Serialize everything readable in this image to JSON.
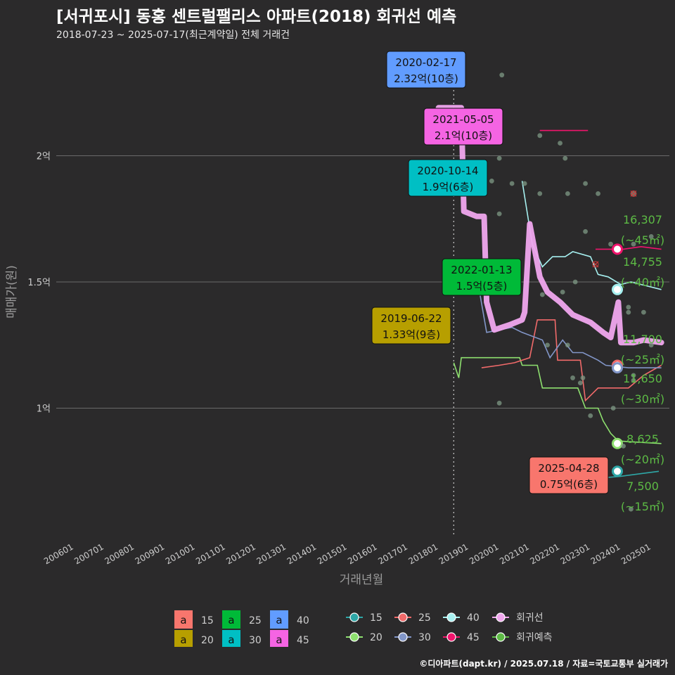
{
  "title": "[서귀포시] 동홍 센트럴팰리스 아파트(2018) 회귀선 예측",
  "subtitle": "2018-07-23 ~ 2025-07-17(최근계약일) 전체 거래건",
  "footer": "©디아파트(dapt.kr) / 2025.07.18 / 자료=국토교통부 실거래가",
  "colors": {
    "background": "#2b2a2b",
    "grid": "#6a6a6a",
    "regression": "#f0a6ee",
    "prediction_text": "#5dbb45",
    "s15": "#2ea7a7",
    "s20": "#8ee06f",
    "s25": "#f16a6a",
    "s30": "#8296c8",
    "s40": "#a6f0f0",
    "s45": "#f1146c"
  },
  "chart_data": {
    "type": "line",
    "xlabel": "거래년월",
    "ylabel": "매매가(원)",
    "x_ticks": [
      "200601",
      "200701",
      "200801",
      "200901",
      "201001",
      "201101",
      "201201",
      "201301",
      "201401",
      "201501",
      "201601",
      "201701",
      "201801",
      "201901",
      "202001",
      "202101",
      "202201",
      "202301",
      "202401",
      "202501"
    ],
    "y_ticks": [
      {
        "value": 1.0,
        "label": "1억"
      },
      {
        "value": 1.5,
        "label": "1.5억"
      },
      {
        "value": 2.0,
        "label": "2억"
      }
    ],
    "ylim": [
      0.5,
      2.45
    ],
    "xlim": [
      "2005-06",
      "2025-09"
    ],
    "reference_line_date": "2018-07",
    "grid": true,
    "series": [
      {
        "name": "15",
        "color": "#2ea7a7",
        "values": [
          [
            "2021-06",
            0.71
          ],
          [
            "2022-04",
            0.71
          ],
          [
            "2023-01",
            0.72
          ],
          [
            "2024-01",
            0.73
          ],
          [
            "2025-04",
            0.75
          ]
        ]
      },
      {
        "name": "20",
        "color": "#8ee06f",
        "values": [
          [
            "2018-07",
            1.18
          ],
          [
            "2018-09",
            1.12
          ],
          [
            "2018-10",
            1.2
          ],
          [
            "2019-06",
            1.2
          ],
          [
            "2020-09",
            1.2
          ],
          [
            "2020-10",
            1.17
          ],
          [
            "2021-04",
            1.17
          ],
          [
            "2021-06",
            1.08
          ],
          [
            "2022-08",
            1.08
          ],
          [
            "2022-11",
            1.0
          ],
          [
            "2023-04",
            1.0
          ],
          [
            "2023-06",
            0.95
          ],
          [
            "2023-09",
            0.9
          ],
          [
            "2023-12",
            0.87
          ],
          [
            "2025-05",
            0.86
          ]
        ]
      },
      {
        "name": "25",
        "color": "#f16a6a",
        "values": [
          [
            "2019-06",
            1.16
          ],
          [
            "2020-01",
            1.17
          ],
          [
            "2020-07",
            1.18
          ],
          [
            "2021-01",
            1.2
          ],
          [
            "2021-04",
            1.35
          ],
          [
            "2021-11",
            1.35
          ],
          [
            "2021-12",
            1.19
          ],
          [
            "2022-09",
            1.19
          ],
          [
            "2022-11",
            1.03
          ],
          [
            "2023-04",
            1.08
          ],
          [
            "2024-04",
            1.08
          ],
          [
            "2024-10",
            1.13
          ],
          [
            "2025-05",
            1.17
          ]
        ]
      },
      {
        "name": "30",
        "color": "#8296c8",
        "values": [
          [
            "2019-01",
            1.53
          ],
          [
            "2019-04",
            1.53
          ],
          [
            "2019-08",
            1.3
          ],
          [
            "2020-06",
            1.32
          ],
          [
            "2020-10",
            1.3
          ],
          [
            "2021-06",
            1.27
          ],
          [
            "2021-09",
            1.2
          ],
          [
            "2022-02",
            1.27
          ],
          [
            "2022-06",
            1.22
          ],
          [
            "2022-10",
            1.22
          ],
          [
            "2023-04",
            1.19
          ],
          [
            "2023-07",
            1.17
          ],
          [
            "2024-04",
            1.16
          ],
          [
            "2025-05",
            1.16
          ]
        ]
      },
      {
        "name": "40",
        "color": "#a6f0f0",
        "values": [
          [
            "2020-10",
            1.9
          ],
          [
            "2021-02",
            1.65
          ],
          [
            "2021-06",
            1.56
          ],
          [
            "2021-10",
            1.6
          ],
          [
            "2022-03",
            1.6
          ],
          [
            "2022-06",
            1.62
          ],
          [
            "2023-01",
            1.6
          ],
          [
            "2023-04",
            1.53
          ],
          [
            "2023-08",
            1.52
          ],
          [
            "2024-01",
            1.49
          ],
          [
            "2024-05",
            1.5
          ],
          [
            "2024-09",
            1.49
          ],
          [
            "2025-05",
            1.47
          ]
        ]
      },
      {
        "name": "45",
        "color": "#f1146c",
        "values": [
          [
            "2021-05",
            2.1
          ],
          [
            "2022-12",
            2.1
          ],
          null,
          [
            "2023-03",
            1.63
          ],
          [
            "2024-02",
            1.63
          ],
          [
            "2024-09",
            1.64
          ],
          [
            "2025-05",
            1.63
          ]
        ]
      }
    ],
    "regression": {
      "name": "회귀선",
      "color": "#f0a6ee",
      "values": [
        [
          "2018-01",
          2.19
        ],
        [
          "2018-10",
          2.19
        ],
        [
          "2018-11",
          1.78
        ],
        [
          "2019-04",
          1.76
        ],
        [
          "2019-07",
          1.76
        ],
        [
          "2019-08",
          1.42
        ],
        [
          "2019-11",
          1.31
        ],
        [
          "2020-05",
          1.33
        ],
        [
          "2020-10",
          1.35
        ],
        [
          "2020-11",
          1.38
        ],
        [
          "2021-01",
          1.73
        ],
        [
          "2021-05",
          1.52
        ],
        [
          "2021-08",
          1.46
        ],
        [
          "2022-01",
          1.42
        ],
        [
          "2022-06",
          1.37
        ],
        [
          "2023-01",
          1.34
        ],
        [
          "2023-06",
          1.3
        ],
        [
          "2023-09",
          1.28
        ],
        [
          "2023-12",
          1.42
        ],
        [
          "2024-01",
          1.26
        ],
        [
          "2024-06",
          1.26
        ],
        [
          "2024-10",
          1.27
        ],
        [
          "2025-05",
          1.26
        ]
      ]
    },
    "points": [
      [
        "2020-02",
        2.32
      ],
      [
        "2020-01",
        1.99
      ],
      [
        "2019-10",
        1.9
      ],
      [
        "2020-01",
        1.77
      ],
      [
        "2020-06",
        1.89
      ],
      [
        "2020-11",
        1.89
      ],
      [
        "2021-05",
        2.08
      ],
      [
        "2022-01",
        2.05
      ],
      [
        "2022-03",
        1.99
      ],
      [
        "2022-11",
        1.89
      ],
      [
        "2023-04",
        1.85
      ],
      [
        "2024-06",
        1.85
      ],
      [
        "2021-05",
        1.85
      ],
      [
        "2022-04",
        1.85
      ],
      [
        "2022-11",
        1.7
      ],
      [
        "2023-09",
        1.65
      ],
      [
        "2024-06",
        1.65
      ],
      [
        "2025-01",
        1.68
      ],
      [
        "2021-06",
        1.45
      ],
      [
        "2022-02",
        1.46
      ],
      [
        "2022-07",
        1.5
      ],
      [
        "2024-04",
        1.4
      ],
      [
        "2024-04",
        1.38
      ],
      [
        "2024-10",
        1.38
      ],
      [
        "2020-03",
        1.46
      ],
      [
        "2021-08",
        1.25
      ],
      [
        "2022-04",
        1.25
      ],
      [
        "2022-06",
        1.12
      ],
      [
        "2022-10",
        1.12
      ],
      [
        "2022-09",
        1.1
      ],
      [
        "2023-10",
        1.0
      ],
      [
        "2023-01",
        0.97
      ],
      [
        "2024-02",
        0.85
      ],
      [
        "2024-05",
        0.6
      ],
      [
        "2020-01",
        1.02
      ],
      [
        "2024-06",
        1.11
      ],
      [
        "2024-06",
        1.13
      ],
      [
        "2025-01",
        1.25
      ]
    ],
    "cancelled_points": [
      [
        "2024-06",
        1.85
      ],
      [
        "2023-03",
        1.57
      ]
    ],
    "annotations": [
      {
        "date": "2020-02-17",
        "price": "2.32억(10층)",
        "color": "#619cff",
        "x": "2020-02",
        "y": 2.32
      },
      {
        "date": "2021-05-05",
        "price": "2.1억(10층)",
        "color": "#f564e3",
        "x": "2021-05",
        "y": 2.1
      },
      {
        "date": "2020-10-14",
        "price": "1.9억(6층)",
        "color": "#00bfc4",
        "x": "2020-10",
        "y": 1.9
      },
      {
        "date": "2022-01-13",
        "price": "1.5억(5층)",
        "color": "#00ba38",
        "x": "2022-01",
        "y": 1.5
      },
      {
        "date": "2019-06-22",
        "price": "1.33억(9층)",
        "color": "#b79f00",
        "x": "2019-06",
        "y": 1.33
      },
      {
        "date": "2025-04-28",
        "price": "0.75억(6층)",
        "color": "#f8766d",
        "x": "2025-04",
        "y": 0.75
      }
    ],
    "predictions": [
      {
        "value": "16,307",
        "area": "(~45㎡)",
        "y": 1.63,
        "color": "#f1146c"
      },
      {
        "value": "14,755",
        "area": "(~40㎡)",
        "y": 1.47,
        "color": "#a6f0f0"
      },
      {
        "value": "11,700",
        "area": "(~25㎡)",
        "y": 1.17,
        "color": "#f16a6a"
      },
      {
        "value": "11,650",
        "area": "(~30㎡)",
        "y": 1.16,
        "color": "#8296c8"
      },
      {
        "value": "8,625",
        "area": "(~20㎡)",
        "y": 0.86,
        "color": "#8ee06f"
      },
      {
        "value": "7,500",
        "area": "(~15㎡)",
        "y": 0.75,
        "color": "#2ea7a7"
      }
    ],
    "legend": {
      "position": "bottom",
      "label_legend": [
        {
          "key": "a",
          "label": "15",
          "color": "#f8766d"
        },
        {
          "key": "a",
          "label": "25",
          "color": "#00ba38"
        },
        {
          "key": "a",
          "label": "40",
          "color": "#619cff"
        },
        {
          "key": "a",
          "label": "20",
          "color": "#b79f00"
        },
        {
          "key": "a",
          "label": "30",
          "color": "#00bfc4"
        },
        {
          "key": "a",
          "label": "45",
          "color": "#f564e3"
        }
      ],
      "line_legend": [
        {
          "label": "15",
          "color": "#2ea7a7"
        },
        {
          "label": "25",
          "color": "#f16a6a"
        },
        {
          "label": "40",
          "color": "#a6f0f0"
        },
        {
          "label": "회귀선",
          "color": "#f0a6ee"
        },
        {
          "label": "20",
          "color": "#8ee06f"
        },
        {
          "label": "30",
          "color": "#8296c8"
        },
        {
          "label": "45",
          "color": "#f1146c"
        },
        {
          "label": "회귀예측",
          "color": "#5dbb45"
        }
      ]
    }
  }
}
